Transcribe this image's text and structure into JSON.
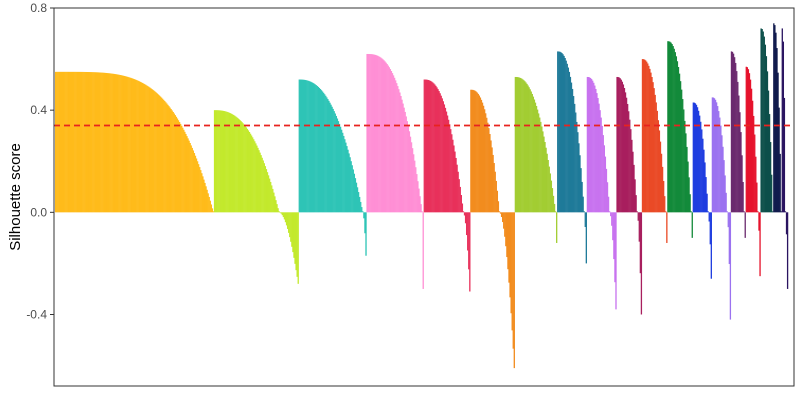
{
  "chart_data": {
    "type": "bar",
    "subtype": "silhouette-plot",
    "title": "",
    "xlabel": "",
    "ylabel": "Silhouette score",
    "ylim": [
      -0.68,
      0.8
    ],
    "y_ticks": [
      0.8,
      0.4,
      0.0,
      -0.4
    ],
    "y_tick_labels": [
      "0.8",
      "0.4",
      "0.0",
      "-0.4"
    ],
    "grid": false,
    "legend": "none",
    "reference_line": {
      "y": 0.34,
      "style": "dashed",
      "color": "#e8231f"
    },
    "clusters": [
      {
        "color": "#ffbb1a",
        "count": 150,
        "max": 0.55,
        "min": 0.0,
        "pos_frac": 1.0,
        "shape": 0.35
      },
      {
        "color": "#c3e92d",
        "count": 80,
        "max": 0.4,
        "min": -0.28,
        "pos_frac": 0.78,
        "shape": 0.9
      },
      {
        "color": "#2ec4b6",
        "count": 64,
        "max": 0.52,
        "min": -0.17,
        "pos_frac": 0.95,
        "shape": 1.0
      },
      {
        "color": "#ff8fd5",
        "count": 54,
        "max": 0.62,
        "min": -0.3,
        "pos_frac": 0.99,
        "shape": 0.75
      },
      {
        "color": "#e8315b",
        "count": 44,
        "max": 0.52,
        "min": -0.31,
        "pos_frac": 0.86,
        "shape": 0.9
      },
      {
        "color": "#f28c1e",
        "count": 42,
        "max": 0.48,
        "min": -0.61,
        "pos_frac": 0.66,
        "shape": 0.9
      },
      {
        "color": "#a2cd32",
        "count": 40,
        "max": 0.53,
        "min": -0.12,
        "pos_frac": 0.97,
        "shape": 1.0
      },
      {
        "color": "#1f7a99",
        "count": 28,
        "max": 0.63,
        "min": -0.2,
        "pos_frac": 0.94,
        "shape": 0.9
      },
      {
        "color": "#c873ef",
        "count": 28,
        "max": 0.53,
        "min": -0.38,
        "pos_frac": 0.8,
        "shape": 0.9
      },
      {
        "color": "#a81f5e",
        "count": 24,
        "max": 0.53,
        "min": -0.4,
        "pos_frac": 0.83,
        "shape": 0.9
      },
      {
        "color": "#ea4a26",
        "count": 24,
        "max": 0.6,
        "min": -0.12,
        "pos_frac": 0.97,
        "shape": 1.0
      },
      {
        "color": "#138a3a",
        "count": 24,
        "max": 0.67,
        "min": -0.1,
        "pos_frac": 0.97,
        "shape": 1.0
      },
      {
        "color": "#1f3de0",
        "count": 18,
        "max": 0.43,
        "min": -0.26,
        "pos_frac": 0.86,
        "shape": 0.9
      },
      {
        "color": "#9b72f0",
        "count": 18,
        "max": 0.45,
        "min": -0.42,
        "pos_frac": 0.82,
        "shape": 0.9
      },
      {
        "color": "#6b2a6e",
        "count": 14,
        "max": 0.63,
        "min": -0.1,
        "pos_frac": 0.9,
        "shape": 1.0
      },
      {
        "color": "#e6132c",
        "count": 14,
        "max": 0.57,
        "min": -0.25,
        "pos_frac": 0.88,
        "shape": 1.0
      },
      {
        "color": "#0d4f4a",
        "count": 12,
        "max": 0.72,
        "min": -0.02,
        "pos_frac": 0.98,
        "shape": 1.0
      },
      {
        "color": "#111a4d",
        "count": 8,
        "max": 0.74,
        "min": -0.02,
        "pos_frac": 0.98,
        "shape": 1.0
      },
      {
        "color": "#2a1460",
        "count": 6,
        "max": 0.72,
        "min": -0.3,
        "pos_frac": 0.7,
        "shape": 1.0
      }
    ]
  }
}
